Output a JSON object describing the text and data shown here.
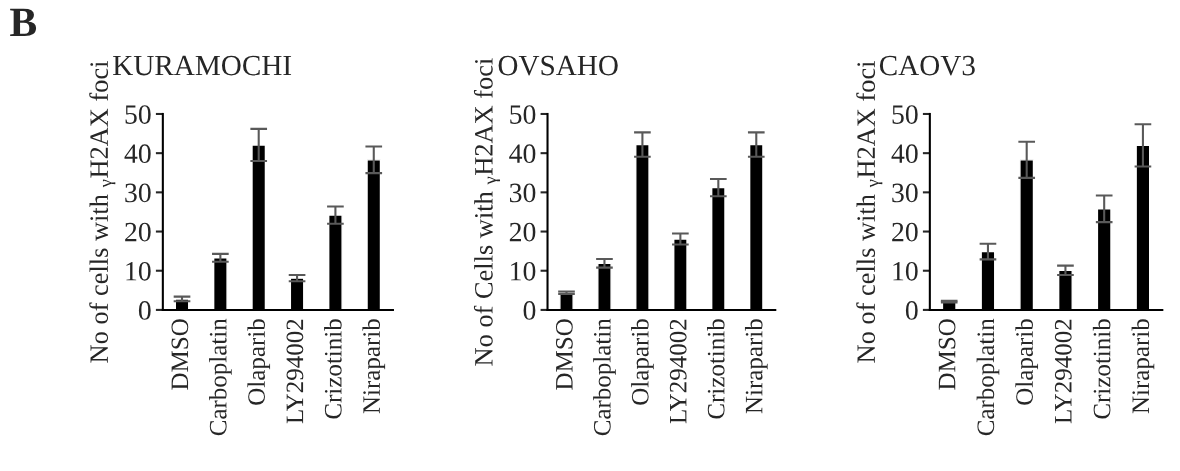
{
  "chart_data": [
    {
      "type": "bar",
      "title": "KURAMOCHI",
      "ylabel": "No of cells with $_{γ}$H2AX foci",
      "annotations": [
        "B"
      ],
      "categories": [
        "DMSO",
        "Carboplatin",
        "Olaparib",
        "LY294002",
        "Crizotinib",
        "Niraparib"
      ],
      "color": "#000000",
      "values": [
        2.8,
        13.3,
        42.1,
        8.1,
        24.2,
        38.3
      ],
      "errors": [
        0.6,
        1.0,
        4.1,
        0.8,
        2.2,
        3.4
      ],
      "ylim": [
        0,
        50
      ],
      "yticks": [
        0,
        10,
        20,
        30,
        40,
        50
      ],
      "grid": false,
      "legend": false
    },
    {
      "type": "bar",
      "title": "OVSAHO",
      "ylabel": "No of Cells with $_{γ}$H2AX foci",
      "categories": [
        "DMSO",
        "Carboplatin",
        "Olaparib",
        "LY294002",
        "Crizotinib",
        "Niraparib"
      ],
      "color": "#000000",
      "values": [
        4.4,
        11.9,
        42.2,
        18.1,
        31.2,
        42.2
      ],
      "errors": [
        0.3,
        1.1,
        3.1,
        1.4,
        2.2,
        3.1
      ],
      "ylim": [
        0,
        50
      ],
      "yticks": [
        0,
        10,
        20,
        30,
        40,
        50
      ],
      "grid": false,
      "legend": false
    },
    {
      "type": "bar",
      "title": "CAOV3",
      "ylabel": "No of cells with $_{γ}$H2AX foci",
      "categories": [
        "DMSO",
        "Carboplatin",
        "Olaparib",
        "LY294002",
        "Crizotinib",
        "Niraparib"
      ],
      "color": "#000000",
      "values": [
        2.1,
        14.9,
        38.3,
        10.1,
        25.8,
        42.0
      ],
      "errors": [
        0.2,
        2.0,
        4.6,
        1.2,
        3.4,
        5.4
      ],
      "ylim": [
        0,
        50
      ],
      "yticks": [
        0,
        10,
        20,
        30,
        40,
        50
      ],
      "grid": false,
      "legend": false
    }
  ]
}
